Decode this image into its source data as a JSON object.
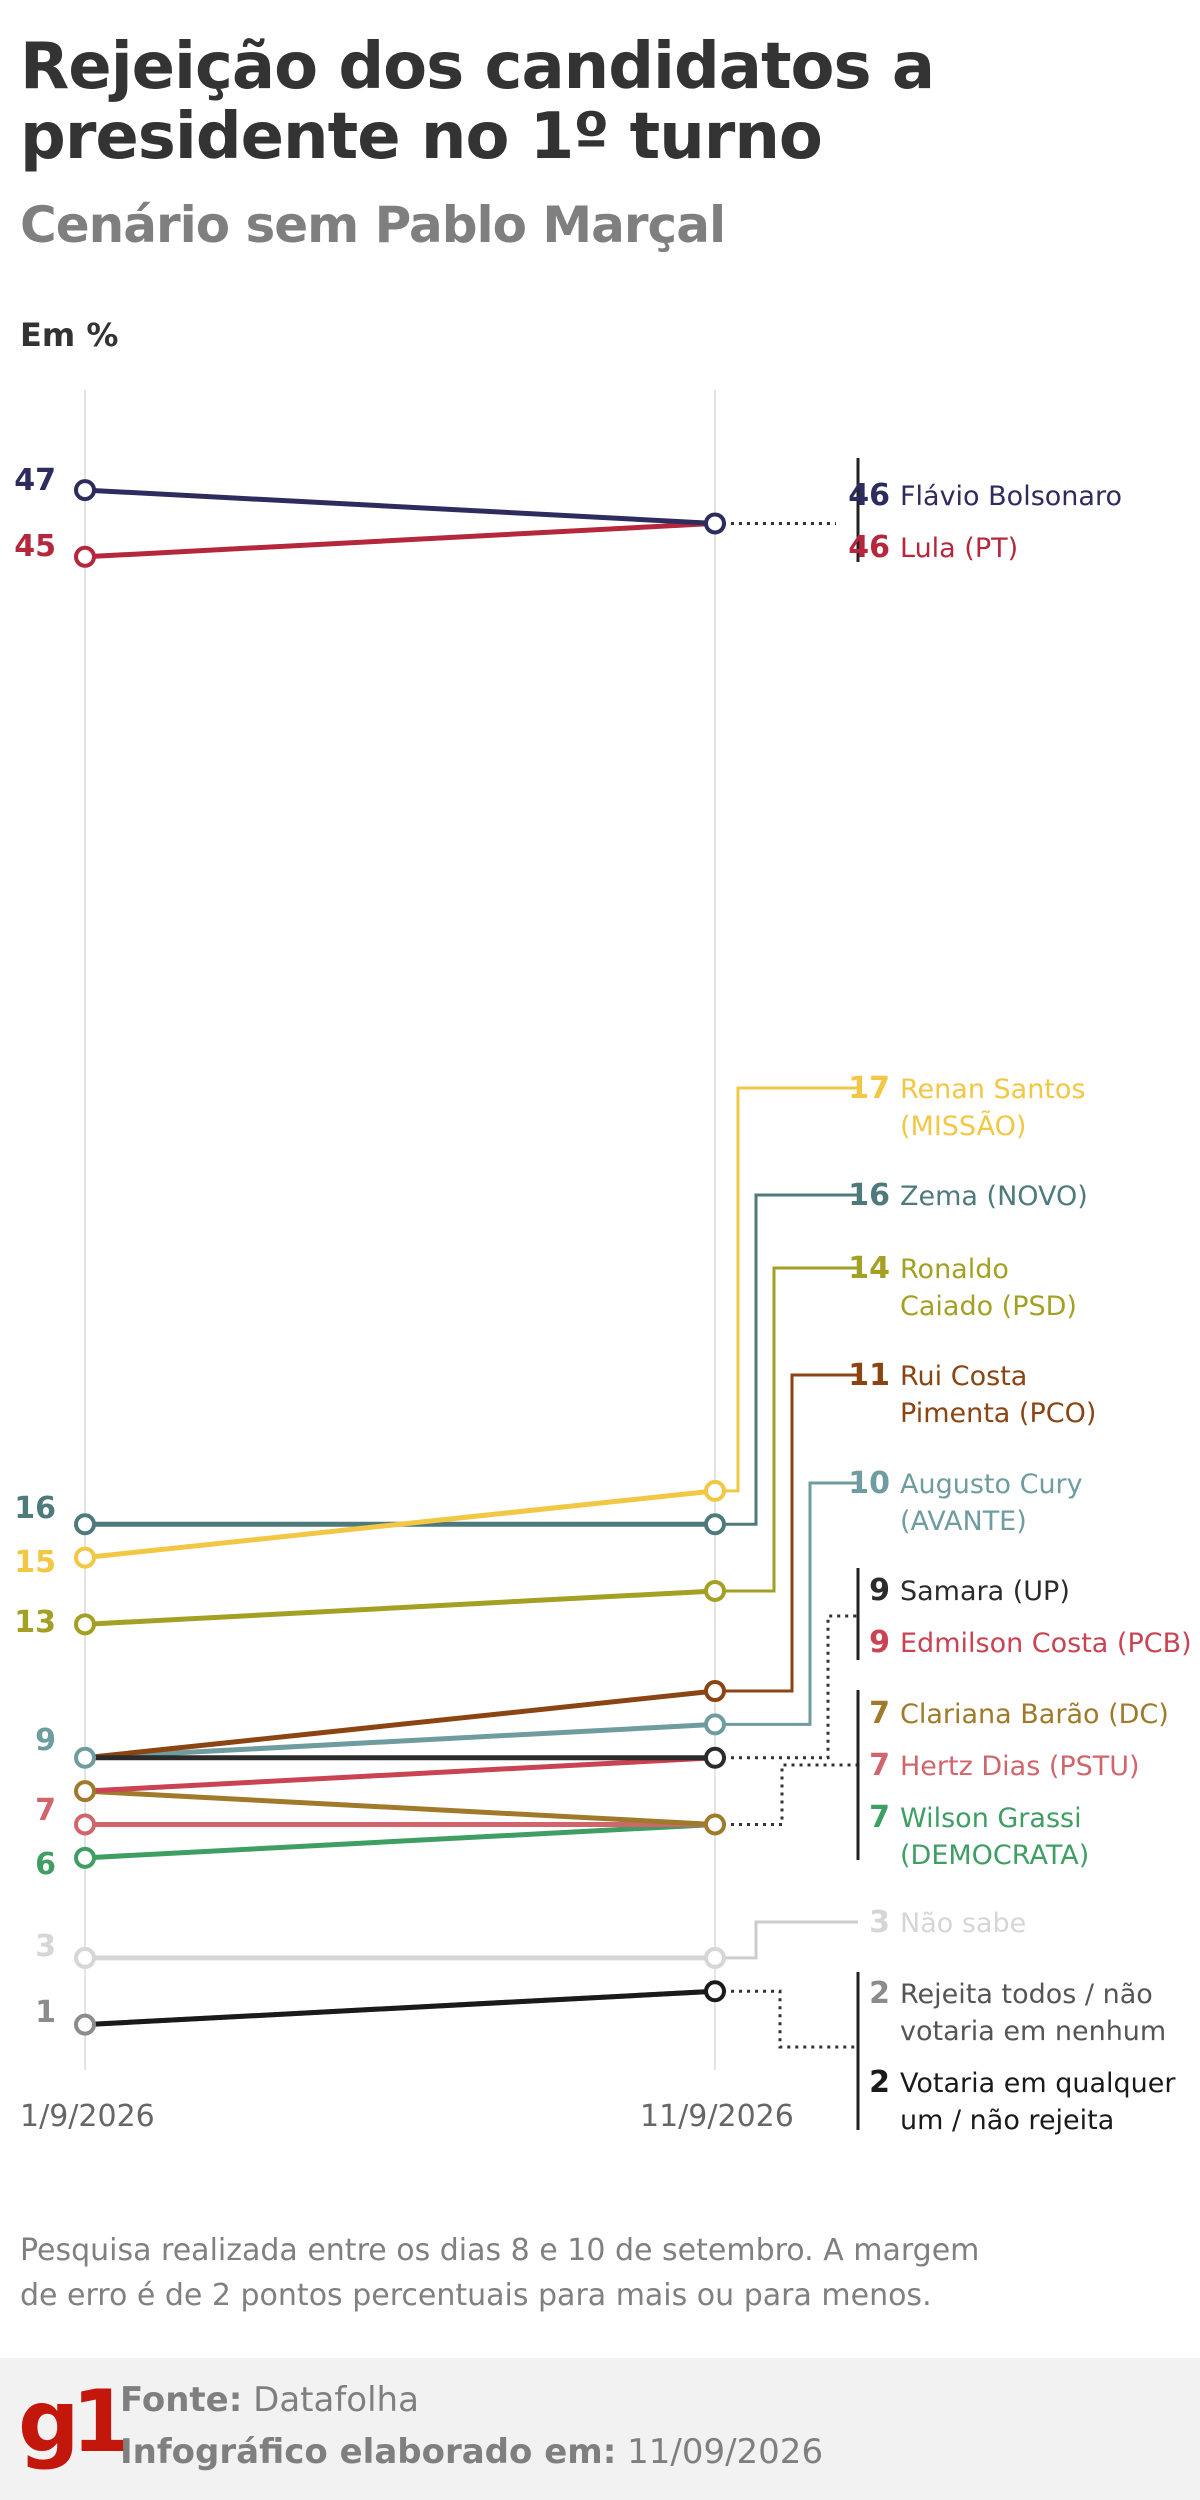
{
  "header": {
    "title": "Rejeição dos candidatos a presidente no 1º turno",
    "subtitle": "Cenário sem Pablo Marçal",
    "unit": "Em %"
  },
  "note": "Pesquisa realizada entre os dias 8 e 10 de setembro. A margem de erro é de 2 pontos percentuais para mais ou para menos.",
  "footer": {
    "logo": "g1",
    "source_label": "Fonte:",
    "source": "Datafolha",
    "made_label": "Infográfico elaborado em:",
    "made_date": "11/09/2026"
  },
  "chart_data": {
    "type": "line",
    "x": [
      "1/9/2026",
      "11/9/2026"
    ],
    "ylim": [
      0,
      50
    ],
    "grid": false,
    "series": [
      {
        "name": "Flávio Bolsonaro",
        "values": [
          47,
          46
        ],
        "color": "#2e2b5f",
        "start_label": "47"
      },
      {
        "name": "Lula (PT)",
        "values": [
          45,
          46
        ],
        "color": "#b5273c",
        "start_label": "45"
      },
      {
        "name": "Renan Santos (MISSÃO)",
        "values": [
          15,
          17
        ],
        "color": "#f2c744",
        "start_label": "15"
      },
      {
        "name": "Zema (NOVO)",
        "values": [
          16,
          16
        ],
        "color": "#4f7a7c",
        "start_label": "16"
      },
      {
        "name": "Ronaldo Caiado (PSD)",
        "values": [
          13,
          14
        ],
        "color": "#a3a024",
        "start_label": "13"
      },
      {
        "name": "Rui Costa Pimenta (PCO)",
        "values": [
          9,
          11
        ],
        "color": "#8b4513",
        "start_label": ""
      },
      {
        "name": "Augusto Cury (AVANTE)",
        "values": [
          9,
          10
        ],
        "color": "#6f9c9e",
        "start_label": "9"
      },
      {
        "name": "Samara (UP)",
        "values": [
          9,
          9
        ],
        "color": "#2b2b2b",
        "start_label": ""
      },
      {
        "name": "Edmilson Costa (PCB)",
        "values": [
          8,
          9
        ],
        "color": "#c94352",
        "start_label": ""
      },
      {
        "name": "Clariana Barão (DC)",
        "values": [
          8,
          7
        ],
        "color": "#a07a2a",
        "start_label": ""
      },
      {
        "name": "Hertz Dias (PSTU)",
        "values": [
          7,
          7
        ],
        "color": "#d0666c",
        "start_label": "7"
      },
      {
        "name": "Wilson Grassi (DEMOCRATA)",
        "values": [
          6,
          7
        ],
        "color": "#3f9e63",
        "start_label": "6"
      },
      {
        "name": "Não sabe",
        "values": [
          3,
          3
        ],
        "color": "#d6d6d6",
        "start_label": "3"
      },
      {
        "name": "Rejeita todos / não votaria em nenhum",
        "values": [
          1,
          2
        ],
        "color": "#8c8c8c",
        "start_label": "1"
      },
      {
        "name": "Votaria em qualquer um / não rejeita",
        "values": [
          1,
          2
        ],
        "color": "#1a1a1a",
        "start_label": ""
      }
    ],
    "labels": [
      {
        "value": "46",
        "text": [
          "Flávio Bolsonaro"
        ],
        "color": "#2e2b5f",
        "text_color": "#2e2b5f"
      },
      {
        "value": "46",
        "text": [
          "Lula (PT)"
        ],
        "color": "#b5273c",
        "text_color": "#b5273c"
      },
      {
        "value": "17",
        "text": [
          "Renan Santos",
          "(MISSÃO)"
        ],
        "color": "#f2c744",
        "text_color": "#f2c744"
      },
      {
        "value": "16",
        "text": [
          "Zema (NOVO)"
        ],
        "color": "#4f7a7c",
        "text_color": "#4f7a7c"
      },
      {
        "value": "14",
        "text": [
          "Ronaldo",
          "Caiado (PSD)"
        ],
        "color": "#a3a024",
        "text_color": "#a3a024"
      },
      {
        "value": "11",
        "text": [
          "Rui Costa",
          "Pimenta (PCO)"
        ],
        "color": "#8b4513",
        "text_color": "#8b4513"
      },
      {
        "value": "10",
        "text": [
          "Augusto Cury",
          "(AVANTE)"
        ],
        "color": "#6f9c9e",
        "text_color": "#6f9c9e"
      },
      {
        "value": "9",
        "text": [
          "Samara (UP)"
        ],
        "color": "#2b2b2b",
        "text_color": "#2b2b2b"
      },
      {
        "value": "9",
        "text": [
          "Edmilson Costa (PCB)"
        ],
        "color": "#c94352",
        "text_color": "#c94352"
      },
      {
        "value": "7",
        "text": [
          "Clariana Barão (DC)"
        ],
        "color": "#a07a2a",
        "text_color": "#a07a2a"
      },
      {
        "value": "7",
        "text": [
          "Hertz Dias (PSTU)"
        ],
        "color": "#d0666c",
        "text_color": "#d0666c"
      },
      {
        "value": "7",
        "text": [
          "Wilson Grassi",
          "(DEMOCRATA)"
        ],
        "color": "#3f9e63",
        "text_color": "#3f9e63"
      },
      {
        "value": "3",
        "text": [
          "Não sabe"
        ],
        "color": "#d6d6d6",
        "text_color": "#d6d6d6"
      },
      {
        "value": "2",
        "text": [
          "Rejeita todos / não",
          "votaria em nenhum"
        ],
        "color": "#8c8c8c",
        "text_color": "#555555"
      },
      {
        "value": "2",
        "text": [
          "Votaria em qualquer",
          "um / não rejeita"
        ],
        "color": "#1a1a1a",
        "text_color": "#1a1a1a"
      }
    ]
  }
}
